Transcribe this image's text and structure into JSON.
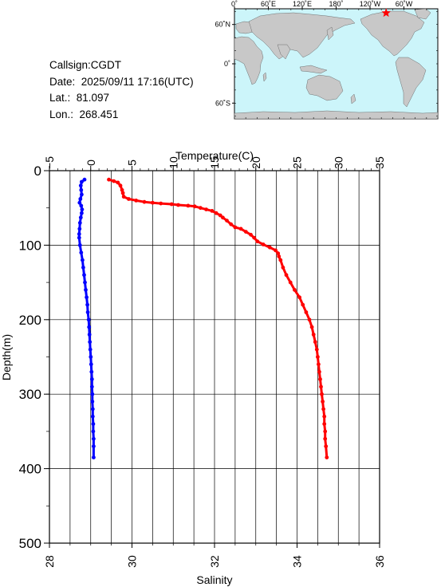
{
  "station": {
    "callsign": "Callsign:CGDT",
    "date": "Date:  2025/09/11 17:16(UTC)",
    "lat": "Lat.:  81.097",
    "lon": "Lon.:  268.451"
  },
  "map": {
    "top_labels": [
      "0˚",
      "60˚E",
      "120˚E",
      "180˚",
      "120˚W",
      "60˚W"
    ],
    "left_labels": [
      "60˚N",
      "0˚",
      "60˚S"
    ],
    "ocean_color": "#ccf5fa",
    "land_color": "#c8c8c8",
    "marker_color": "#ff0000",
    "marker": {
      "lon": 268.451,
      "lat": 81.097
    }
  },
  "chart_data": {
    "type": "scatter",
    "top_axis": {
      "label": "Temperature(C)",
      "range": [
        -5,
        35
      ],
      "ticks": [
        "−5",
        "0",
        "5",
        "10",
        "15",
        "20",
        "25",
        "30",
        "35"
      ]
    },
    "bottom_axis": {
      "label": "Salinity",
      "range": [
        28,
        36
      ],
      "ticks": [
        "28",
        "30",
        "32",
        "34",
        "36"
      ]
    },
    "left_axis": {
      "label": "Depth(m)",
      "range": [
        0,
        500
      ],
      "inverted": true,
      "ticks": [
        "0",
        "100",
        "200",
        "300",
        "400",
        "500"
      ]
    },
    "grid": true,
    "series": [
      {
        "color": "#ff0000",
        "axis": "temperature",
        "points": [
          [
            2.2,
            12
          ],
          [
            2.8,
            14
          ],
          [
            3.3,
            16
          ],
          [
            3.6,
            20
          ],
          [
            3.8,
            26
          ],
          [
            3.9,
            30
          ],
          [
            4.0,
            35
          ],
          [
            4.6,
            38
          ],
          [
            5.5,
            40
          ],
          [
            6.5,
            42
          ],
          [
            7.5,
            43
          ],
          [
            8.5,
            44
          ],
          [
            9.8,
            45
          ],
          [
            10.6,
            46
          ],
          [
            11.8,
            47
          ],
          [
            12.6,
            48
          ],
          [
            13.3,
            50
          ],
          [
            14.0,
            52
          ],
          [
            14.7,
            54
          ],
          [
            15.2,
            57
          ],
          [
            15.7,
            60
          ],
          [
            16.0,
            63
          ],
          [
            16.5,
            67
          ],
          [
            17.0,
            72
          ],
          [
            17.5,
            76
          ],
          [
            18.2,
            78
          ],
          [
            18.8,
            82
          ],
          [
            19.4,
            86
          ],
          [
            19.8,
            90
          ],
          [
            20.2,
            95
          ],
          [
            20.9,
            99
          ],
          [
            21.7,
            103
          ],
          [
            22.4,
            107
          ],
          [
            22.7,
            111
          ],
          [
            22.8,
            115
          ],
          [
            23.0,
            120
          ],
          [
            23.3,
            130
          ],
          [
            23.7,
            140
          ],
          [
            24.2,
            150
          ],
          [
            24.7,
            160
          ],
          [
            25.3,
            170
          ],
          [
            25.7,
            180
          ],
          [
            26.1,
            190
          ],
          [
            26.5,
            200
          ],
          [
            26.8,
            210
          ],
          [
            27.0,
            220
          ],
          [
            27.2,
            230
          ],
          [
            27.4,
            240
          ],
          [
            27.5,
            250
          ],
          [
            27.6,
            260
          ],
          [
            27.7,
            270
          ],
          [
            27.8,
            280
          ],
          [
            27.9,
            290
          ],
          [
            28.0,
            300
          ],
          [
            28.1,
            310
          ],
          [
            28.2,
            320
          ],
          [
            28.3,
            330
          ],
          [
            28.3,
            340
          ],
          [
            28.4,
            350
          ],
          [
            28.4,
            360
          ],
          [
            28.5,
            370
          ],
          [
            28.6,
            385
          ]
        ]
      },
      {
        "color": "#0000ff",
        "axis": "salinity",
        "points": [
          [
            28.85,
            12
          ],
          [
            28.78,
            15
          ],
          [
            28.76,
            20
          ],
          [
            28.77,
            26
          ],
          [
            28.78,
            32
          ],
          [
            28.75,
            38
          ],
          [
            28.73,
            43
          ],
          [
            28.77,
            47
          ],
          [
            28.79,
            52
          ],
          [
            28.78,
            57
          ],
          [
            28.76,
            63
          ],
          [
            28.74,
            70
          ],
          [
            28.73,
            78
          ],
          [
            28.72,
            85
          ],
          [
            28.72,
            90
          ],
          [
            28.74,
            100
          ],
          [
            28.77,
            110
          ],
          [
            28.8,
            120
          ],
          [
            28.82,
            130
          ],
          [
            28.84,
            140
          ],
          [
            28.86,
            150
          ],
          [
            28.88,
            160
          ],
          [
            28.9,
            170
          ],
          [
            28.92,
            180
          ],
          [
            28.93,
            190
          ],
          [
            28.95,
            200
          ],
          [
            28.96,
            210
          ],
          [
            28.97,
            220
          ],
          [
            28.98,
            230
          ],
          [
            28.99,
            240
          ],
          [
            29.0,
            250
          ],
          [
            29.01,
            260
          ],
          [
            29.02,
            270
          ],
          [
            29.03,
            280
          ],
          [
            29.03,
            290
          ],
          [
            29.04,
            300
          ],
          [
            29.04,
            310
          ],
          [
            29.05,
            320
          ],
          [
            29.05,
            330
          ],
          [
            29.06,
            340
          ],
          [
            29.06,
            350
          ],
          [
            29.07,
            360
          ],
          [
            29.07,
            370
          ],
          [
            29.07,
            385
          ]
        ]
      }
    ]
  }
}
